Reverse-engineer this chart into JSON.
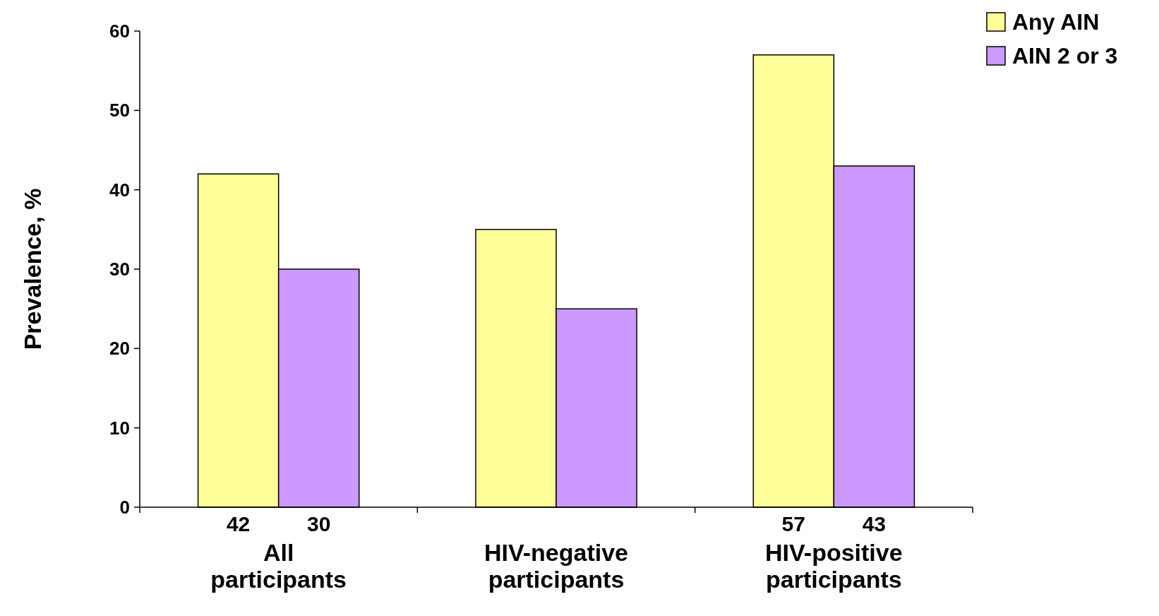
{
  "chart_data": {
    "type": "bar",
    "ylabel": "Prevalence, %",
    "categories": [
      "All participants",
      "HIV-negative participants",
      "HIV-positive participants"
    ],
    "series": [
      {
        "name": "Any AIN",
        "color": "#ffff99",
        "values": [
          42,
          35,
          57
        ],
        "value_labels": [
          "42",
          null,
          "57"
        ]
      },
      {
        "name": "AIN 2 or 3",
        "color": "#cc99ff",
        "values": [
          30,
          25,
          43
        ],
        "value_labels": [
          "30",
          null,
          "43"
        ]
      }
    ],
    "ylim": [
      0,
      60
    ],
    "yticks": [
      0,
      10,
      20,
      30,
      40,
      50,
      60
    ],
    "legend": "top right",
    "grid": false
  }
}
